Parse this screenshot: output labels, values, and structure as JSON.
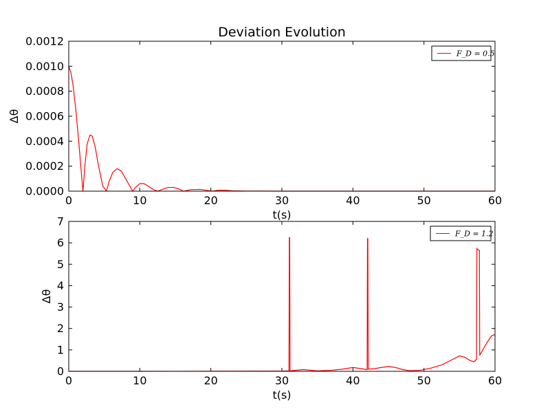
{
  "figure": {
    "title": "Deviation Evolution"
  },
  "chart_data": [
    {
      "type": "line",
      "title": "Deviation Evolution",
      "xlabel": "t(s)",
      "ylabel": "Δθ",
      "xlim": [
        0,
        60
      ],
      "ylim": [
        0,
        0.0012
      ],
      "xticks": [
        0,
        10,
        20,
        30,
        40,
        50,
        60
      ],
      "xtick_labels": [
        "0",
        "10",
        "20",
        "30",
        "40",
        "50",
        "60"
      ],
      "yticks": [
        0,
        0.0002,
        0.0004,
        0.0006,
        0.0008,
        0.001,
        0.0012
      ],
      "ytick_labels": [
        "0.0000",
        "0.0002",
        "0.0004",
        "0.0006",
        "0.0008",
        "0.0010",
        "0.0012"
      ],
      "grid": false,
      "legend_position": "top-right",
      "series": [
        {
          "name": "F_D = 0.5",
          "color": "#ff0000",
          "x": [
            0,
            0.3,
            0.6,
            1.0,
            1.4,
            1.8,
            2.0,
            2.3,
            2.6,
            3.0,
            3.3,
            3.7,
            4.2,
            4.8,
            5.3,
            5.7,
            6.2,
            6.8,
            7.4,
            8.0,
            8.7,
            9.0,
            9.4,
            10.0,
            10.6,
            11.2,
            12.0,
            12.5,
            13.2,
            14.0,
            14.8,
            15.6,
            16.2,
            17.2,
            18.5,
            19.5,
            20.2,
            21.0,
            22.0,
            23.0,
            25.0,
            30.0,
            40.0,
            50.0,
            60.0
          ],
          "y": [
            0.001,
            0.00095,
            0.00085,
            0.00065,
            0.0004,
            0.00013,
            0.0,
            0.00022,
            0.00038,
            0.00045,
            0.00044,
            0.00036,
            0.0002,
            4e-05,
            0.0,
            8e-05,
            0.00015,
            0.00018,
            0.00016,
            0.0001,
            3e-05,
            0.0,
            3e-05,
            6e-05,
            6e-05,
            4e-05,
            1e-05,
            0.0,
            1.5e-05,
            3e-05,
            3e-05,
            1.5e-05,
            0.0,
            1.2e-05,
            1.4e-05,
            6e-06,
            0.0,
            7e-06,
            7e-06,
            3e-06,
            1e-06,
            0.0,
            0.0,
            0.0,
            0.0
          ]
        }
      ]
    },
    {
      "type": "line",
      "title": "",
      "xlabel": "t(s)",
      "ylabel": "Δθ",
      "xlim": [
        0,
        60
      ],
      "ylim": [
        0,
        7
      ],
      "xticks": [
        0,
        10,
        20,
        30,
        40,
        50,
        60
      ],
      "xtick_labels": [
        "0",
        "10",
        "20",
        "30",
        "40",
        "50",
        "60"
      ],
      "yticks": [
        0,
        1,
        2,
        3,
        4,
        5,
        6,
        7
      ],
      "ytick_labels": [
        "0",
        "1",
        "2",
        "3",
        "4",
        "5",
        "6",
        "7"
      ],
      "grid": false,
      "legend_position": "top-right",
      "series": [
        {
          "name": "F_D = 1.2",
          "color": "#ff0000",
          "x": [
            0,
            10,
            20,
            30,
            31.0,
            31.05,
            31.1,
            31.15,
            33.0,
            35.0,
            37.0,
            38.5,
            40.0,
            41.2,
            42.0,
            42.05,
            42.1,
            42.15,
            43.0,
            44.0,
            45.0,
            46.0,
            47.0,
            48.0,
            49.5,
            51.0,
            52.5,
            54.0,
            55.0,
            55.8,
            56.5,
            57.0,
            57.4,
            57.45,
            57.5,
            57.8,
            57.85,
            58.2,
            58.8,
            59.5,
            60.0
          ],
          "y": [
            0.0,
            0.0,
            0.005,
            0.01,
            0.02,
            6.25,
            6.25,
            0.02,
            0.08,
            0.02,
            0.05,
            0.1,
            0.18,
            0.12,
            0.08,
            6.2,
            6.2,
            0.1,
            0.12,
            0.18,
            0.22,
            0.18,
            0.08,
            0.03,
            0.05,
            0.15,
            0.3,
            0.55,
            0.72,
            0.65,
            0.5,
            0.45,
            0.55,
            5.75,
            5.7,
            5.65,
            0.75,
            0.95,
            1.3,
            1.65,
            1.72
          ]
        }
      ]
    }
  ]
}
